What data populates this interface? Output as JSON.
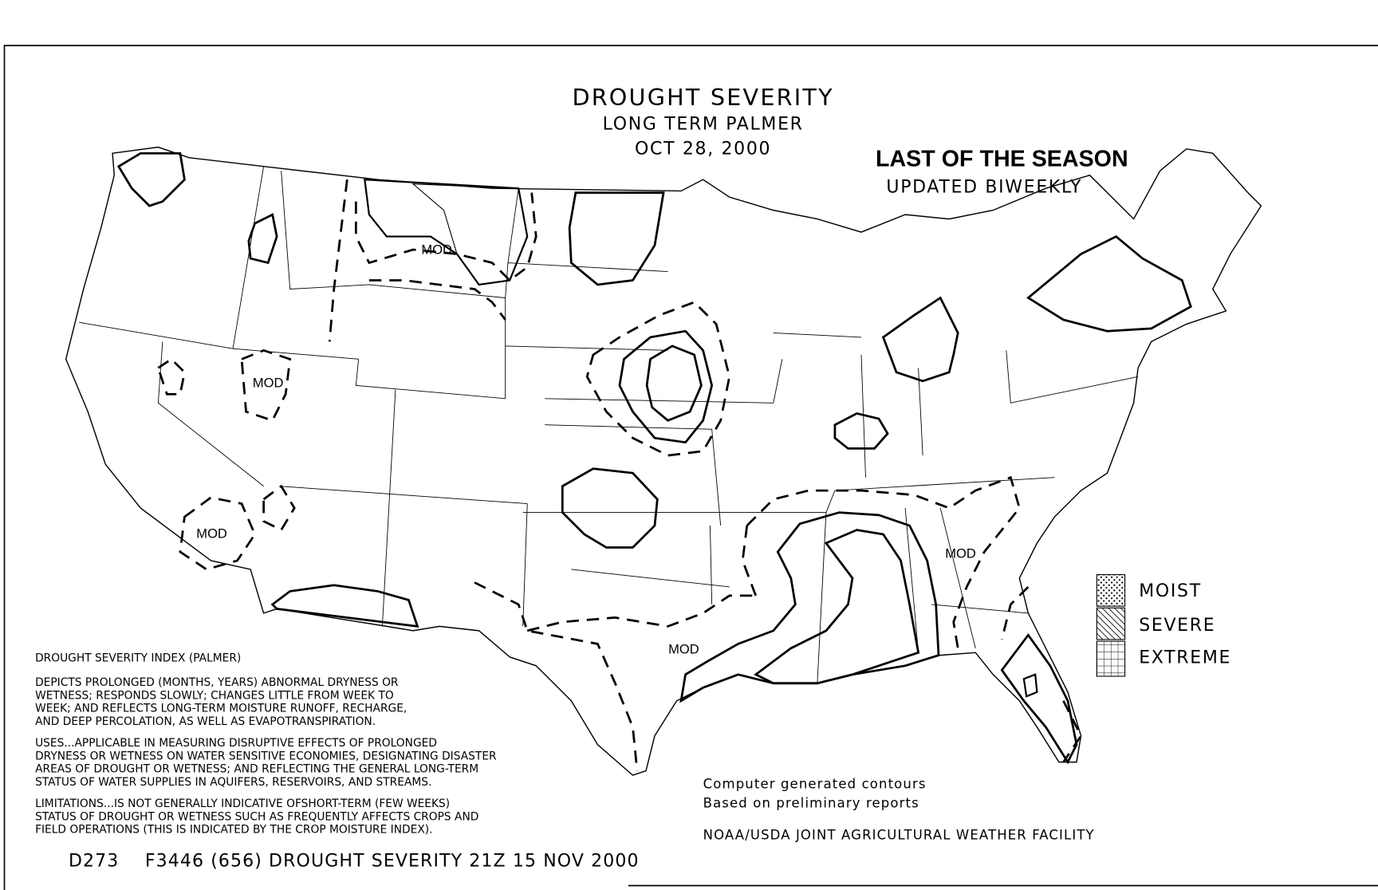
{
  "header": {
    "title": "DROUGHT SEVERITY",
    "subtitle": "LONG TERM PALMER",
    "date": "OCT 28, 2000"
  },
  "notice": {
    "headline": "LAST OF THE SEASON",
    "note": "UPDATED BIWEEKLY"
  },
  "map_labels": [
    "MOD",
    "MOD",
    "MOD",
    "MOD",
    "MOD"
  ],
  "legend": [
    "MOIST",
    "SEVERE",
    "EXTREME"
  ],
  "index": {
    "heading": "DROUGHT SEVERITY INDEX (PALMER)",
    "paragraphs": [
      [
        "DEPICTS PROLONGED (MONTHS, YEARS) ABNORMAL DRYNESS OR",
        "WETNESS; RESPONDS SLOWLY; CHANGES LITTLE FROM WEEK TO",
        "WEEK; AND REFLECTS LONG-TERM MOISTURE RUNOFF, RECHARGE,",
        "AND DEEP PERCOLATION, AS WELL AS EVAPOTRANSPIRATION."
      ],
      [
        "USES...APPLICABLE IN MEASURING DISRUPTIVE EFFECTS OF PROLONGED",
        "DRYNESS OR WETNESS ON WATER SENSITIVE ECONOMIES, DESIGNATING DISASTER",
        "AREAS OF DROUGHT OR WETNESS; AND REFLECTING THE GENERAL LONG-TERM",
        "STATUS OF WATER SUPPLIES IN AQUIFERS, RESERVOIRS, AND STREAMS."
      ],
      [
        "LIMITATIONS...IS NOT GENERALLY INDICATIVE OFSHORT-TERM (FEW WEEKS)",
        "STATUS OF DROUGHT OR WETNESS SUCH AS FREQUENTLY AFFECTS CROPS AND",
        "FIELD OPERATIONS (THIS IS INDICATED BY THE CROP MOISTURE INDEX)."
      ]
    ]
  },
  "credits": [
    "Computer generated contours",
    "Based on preliminary reports",
    "NOAA/USDA JOINT AGRICULTURAL WEATHER FACILITY"
  ],
  "footer": "D273    F3446 (656) DROUGHT SEVERITY 21Z 15 NOV 2000"
}
